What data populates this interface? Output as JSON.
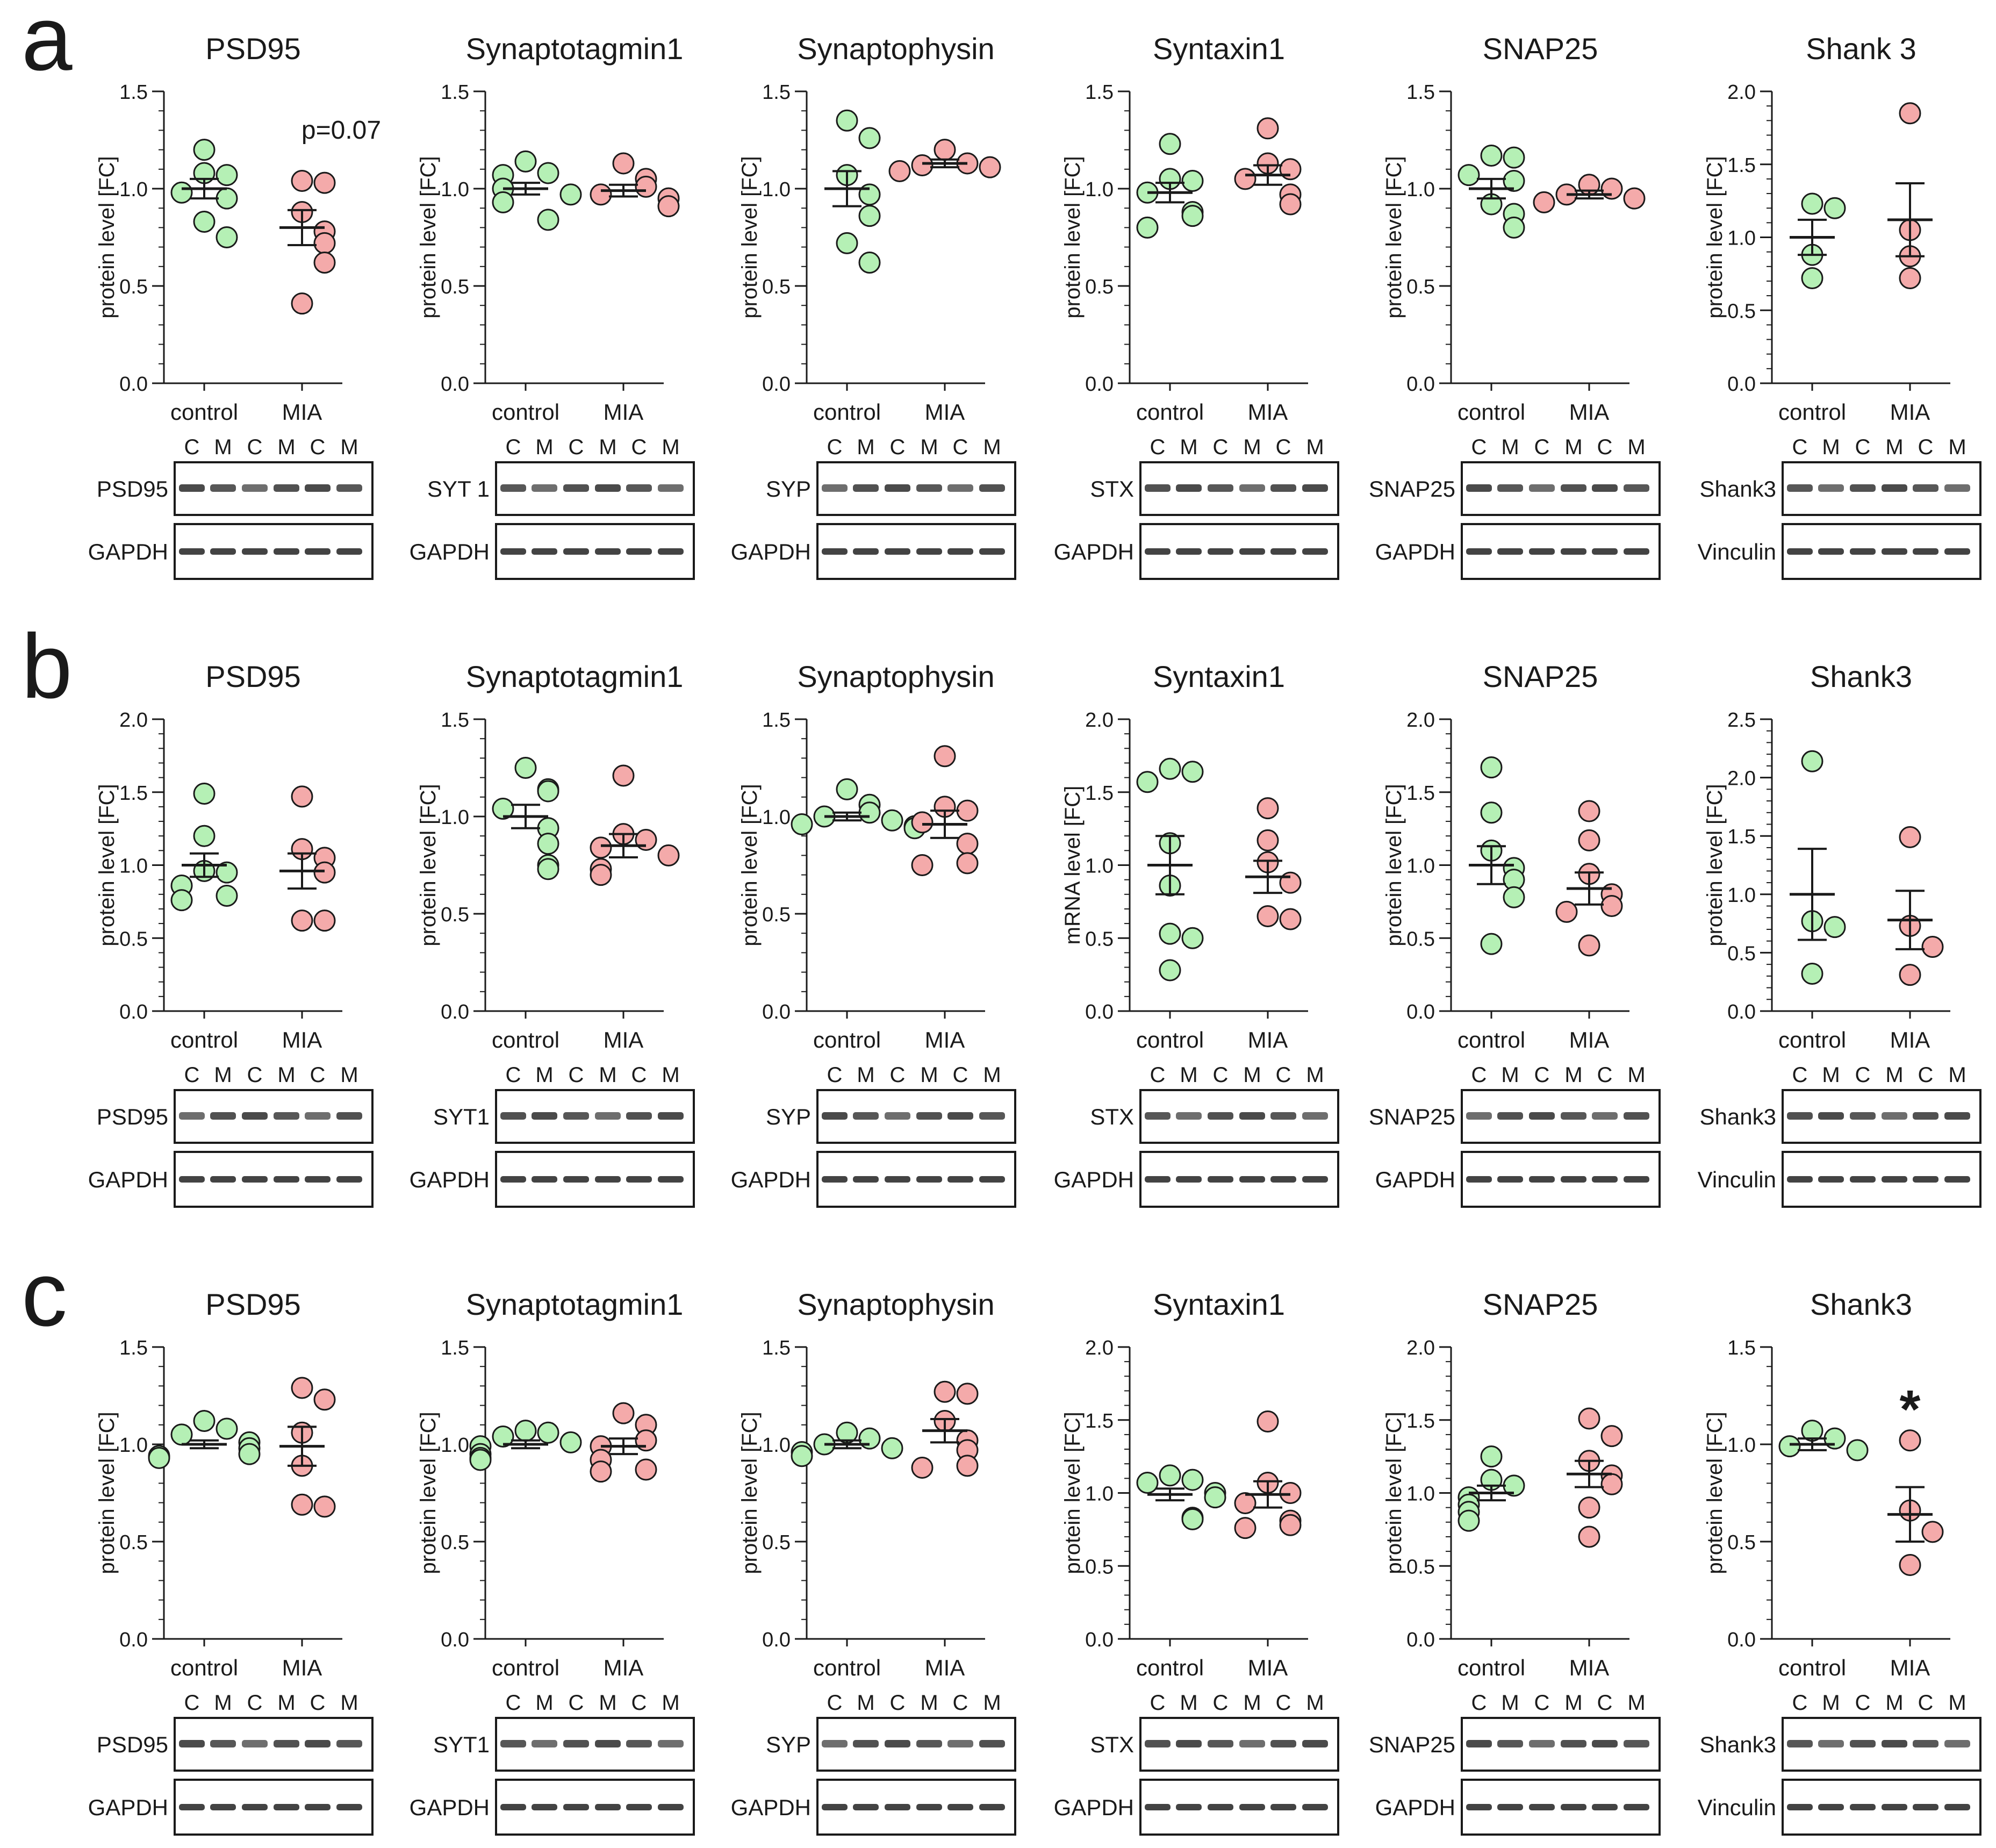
{
  "figure": {
    "colors": {
      "control": "#b5f0b5",
      "mia": "#f4aaaa",
      "stroke": "#1a1a1a"
    },
    "strip_labels": [
      "C",
      "M",
      "C",
      "M",
      "C",
      "M"
    ]
  },
  "chart_data": [
    {
      "panel": "a",
      "panel_label": "a",
      "title": "PSD95",
      "type": "scatter",
      "ylabel": "protein level [FC]",
      "ylim": [
        0,
        1.5
      ],
      "yticks": [
        "0.0",
        "0.5",
        "1.0",
        "1.5"
      ],
      "categories": [
        "control",
        "MIA"
      ],
      "series": [
        {
          "name": "control",
          "values": [
            1.2,
            1.08,
            1.07,
            0.98,
            0.95,
            0.83,
            0.75
          ],
          "mean": 1.0,
          "sem": 0.05
        },
        {
          "name": "MIA",
          "values": [
            1.04,
            1.03,
            0.88,
            0.78,
            0.72,
            0.62,
            0.41
          ],
          "mean": 0.8,
          "sem": 0.09
        }
      ],
      "annotation": "p=0.07",
      "blot": {
        "target": "PSD95",
        "loading": "GAPDH"
      }
    },
    {
      "panel": "a",
      "panel_label": "",
      "title": "Synaptotagmin1",
      "type": "scatter",
      "ylabel": "protein level [FC]",
      "ylim": [
        0,
        1.5
      ],
      "yticks": [
        "0.0",
        "0.5",
        "1.0",
        "1.5"
      ],
      "categories": [
        "control",
        "MIA"
      ],
      "series": [
        {
          "name": "control",
          "values": [
            1.14,
            1.08,
            1.07,
            1.0,
            0.97,
            0.93,
            0.84
          ],
          "mean": 1.0,
          "sem": 0.03
        },
        {
          "name": "MIA",
          "values": [
            1.13,
            1.05,
            1.01,
            0.97,
            0.95,
            0.91
          ],
          "mean": 0.99,
          "sem": 0.03
        }
      ],
      "annotation": "",
      "blot": {
        "target": "SYT 1",
        "loading": "GAPDH"
      }
    },
    {
      "panel": "a",
      "panel_label": "",
      "title": "Synaptophysin",
      "type": "scatter",
      "ylabel": "protein level [FC]",
      "ylim": [
        0,
        1.5
      ],
      "yticks": [
        "0.0",
        "0.5",
        "1.0",
        "1.5"
      ],
      "categories": [
        "control",
        "MIA"
      ],
      "series": [
        {
          "name": "control",
          "values": [
            1.35,
            1.26,
            1.07,
            0.97,
            0.86,
            0.72,
            0.62
          ],
          "mean": 1.0,
          "sem": 0.09
        },
        {
          "name": "MIA",
          "values": [
            1.2,
            1.13,
            1.12,
            1.11,
            1.09
          ],
          "mean": 1.13,
          "sem": 0.02
        }
      ],
      "annotation": "",
      "blot": {
        "target": "SYP",
        "loading": "GAPDH"
      }
    },
    {
      "panel": "a",
      "panel_label": "",
      "title": "Syntaxin1",
      "type": "scatter",
      "ylabel": "protein level [FC]",
      "ylim": [
        0,
        1.5
      ],
      "yticks": [
        "0.0",
        "0.5",
        "1.0",
        "1.5"
      ],
      "categories": [
        "control",
        "MIA"
      ],
      "series": [
        {
          "name": "control",
          "values": [
            1.23,
            1.05,
            1.04,
            0.98,
            0.88,
            0.86,
            0.8
          ],
          "mean": 0.98,
          "sem": 0.05
        },
        {
          "name": "MIA",
          "values": [
            1.31,
            1.13,
            1.1,
            1.05,
            0.97,
            0.92
          ],
          "mean": 1.07,
          "sem": 0.05
        }
      ],
      "annotation": "",
      "blot": {
        "target": "STX",
        "loading": "GAPDH"
      }
    },
    {
      "panel": "a",
      "panel_label": "",
      "title": "SNAP25",
      "type": "scatter",
      "ylabel": "protein level [FC]",
      "ylim": [
        0,
        1.5
      ],
      "yticks": [
        "0.0",
        "0.5",
        "1.0",
        "1.5"
      ],
      "categories": [
        "control",
        "MIA"
      ],
      "series": [
        {
          "name": "control",
          "values": [
            1.17,
            1.16,
            1.07,
            1.04,
            0.92,
            0.87,
            0.8
          ],
          "mean": 1.0,
          "sem": 0.05
        },
        {
          "name": "MIA",
          "values": [
            1.02,
            1.0,
            0.97,
            0.95,
            0.93
          ],
          "mean": 0.97,
          "sem": 0.02
        }
      ],
      "annotation": "",
      "blot": {
        "target": "SNAP25",
        "loading": "GAPDH"
      }
    },
    {
      "panel": "a",
      "panel_label": "",
      "title": "Shank 3",
      "type": "scatter",
      "ylabel": "protein level [FC]",
      "ylim": [
        0,
        2.0
      ],
      "yticks": [
        "0.0",
        "0.5",
        "1.0",
        "1.5",
        "2.0"
      ],
      "categories": [
        "control",
        "MIA"
      ],
      "series": [
        {
          "name": "control",
          "values": [
            1.23,
            1.2,
            0.88,
            0.72
          ],
          "mean": 1.0,
          "sem": 0.12
        },
        {
          "name": "MIA",
          "values": [
            1.85,
            1.05,
            0.87,
            0.72
          ],
          "mean": 1.12,
          "sem": 0.25
        }
      ],
      "annotation": "",
      "blot": {
        "target": "Shank3",
        "loading": "Vinculin"
      }
    },
    {
      "panel": "b",
      "panel_label": "b",
      "title": "PSD95",
      "type": "scatter",
      "ylabel": "protein level [FC]",
      "ylim": [
        0,
        2.0
      ],
      "yticks": [
        "0.0",
        "0.5",
        "1.0",
        "1.5",
        "2.0"
      ],
      "categories": [
        "control",
        "MIA"
      ],
      "series": [
        {
          "name": "control",
          "values": [
            1.49,
            1.2,
            0.96,
            0.95,
            0.86,
            0.79,
            0.76
          ],
          "mean": 1.0,
          "sem": 0.08
        },
        {
          "name": "MIA",
          "values": [
            1.47,
            1.11,
            1.05,
            0.95,
            0.62,
            0.62
          ],
          "mean": 0.96,
          "sem": 0.12
        }
      ],
      "annotation": "",
      "blot": {
        "target": "PSD95",
        "loading": "GAPDH"
      }
    },
    {
      "panel": "b",
      "panel_label": "",
      "title": "Synaptotagmin1",
      "type": "scatter",
      "ylabel": "protein level [FC]",
      "ylim": [
        0,
        1.5
      ],
      "yticks": [
        "0.0",
        "0.5",
        "1.0",
        "1.5"
      ],
      "categories": [
        "control",
        "MIA"
      ],
      "series": [
        {
          "name": "control",
          "values": [
            1.25,
            1.14,
            1.13,
            1.04,
            0.94,
            0.86,
            0.75,
            0.73
          ],
          "mean": 1.0,
          "sem": 0.06
        },
        {
          "name": "MIA",
          "values": [
            1.21,
            0.91,
            0.88,
            0.84,
            0.8,
            0.73,
            0.7
          ],
          "mean": 0.85,
          "sem": 0.06
        }
      ],
      "annotation": "",
      "blot": {
        "target": "SYT1",
        "loading": "GAPDH"
      }
    },
    {
      "panel": "b",
      "panel_label": "",
      "title": "Synaptophysin",
      "type": "scatter",
      "ylabel": "protein level [FC]",
      "ylim": [
        0,
        1.5
      ],
      "yticks": [
        "0.0",
        "0.5",
        "1.0",
        "1.5"
      ],
      "categories": [
        "control",
        "MIA"
      ],
      "series": [
        {
          "name": "control",
          "values": [
            1.14,
            1.06,
            1.02,
            1.0,
            0.98,
            0.96,
            0.95,
            0.94
          ],
          "mean": 1.0,
          "sem": 0.02
        },
        {
          "name": "MIA",
          "values": [
            1.31,
            1.05,
            1.03,
            0.97,
            0.86,
            0.76,
            0.75
          ],
          "mean": 0.96,
          "sem": 0.07
        }
      ],
      "annotation": "",
      "blot": {
        "target": "SYP",
        "loading": "GAPDH"
      }
    },
    {
      "panel": "b",
      "panel_label": "",
      "title": "Syntaxin1",
      "type": "scatter",
      "ylabel": "mRNA level [FC]",
      "ylim": [
        0,
        2.0
      ],
      "yticks": [
        "0.0",
        "0.5",
        "1.0",
        "1.5",
        "2.0"
      ],
      "categories": [
        "control",
        "MIA"
      ],
      "series": [
        {
          "name": "control",
          "values": [
            1.66,
            1.64,
            1.57,
            1.15,
            0.86,
            0.53,
            0.5,
            0.28
          ],
          "mean": 1.0,
          "sem": 0.2
        },
        {
          "name": "MIA",
          "values": [
            1.39,
            1.17,
            1.02,
            0.88,
            0.65,
            0.63
          ],
          "mean": 0.92,
          "sem": 0.11
        }
      ],
      "annotation": "",
      "blot": {
        "target": "STX",
        "loading": "GAPDH"
      }
    },
    {
      "panel": "b",
      "panel_label": "",
      "title": "SNAP25",
      "type": "scatter",
      "ylabel": "protein level [FC]",
      "ylim": [
        0,
        2.0
      ],
      "yticks": [
        "0.0",
        "0.5",
        "1.0",
        "1.5",
        "2.0"
      ],
      "categories": [
        "control",
        "MIA"
      ],
      "series": [
        {
          "name": "control",
          "values": [
            1.67,
            1.36,
            1.1,
            0.98,
            0.9,
            0.78,
            0.46
          ],
          "mean": 1.0,
          "sem": 0.13
        },
        {
          "name": "MIA",
          "values": [
            1.37,
            1.17,
            0.94,
            0.8,
            0.72,
            0.68,
            0.45
          ],
          "mean": 0.84,
          "sem": 0.11
        }
      ],
      "annotation": "",
      "blot": {
        "target": "SNAP25",
        "loading": "GAPDH"
      }
    },
    {
      "panel": "b",
      "panel_label": "",
      "title": "Shank3",
      "type": "scatter",
      "ylabel": "protein level [FC]",
      "ylim": [
        0,
        2.5
      ],
      "yticks": [
        "0.0",
        "0.5",
        "1.0",
        "1.5",
        "2.0",
        "2.5"
      ],
      "categories": [
        "control",
        "MIA"
      ],
      "series": [
        {
          "name": "control",
          "values": [
            2.14,
            0.77,
            0.72,
            0.32
          ],
          "mean": 1.0,
          "sem": 0.39
        },
        {
          "name": "MIA",
          "values": [
            1.49,
            0.73,
            0.55,
            0.31
          ],
          "mean": 0.78,
          "sem": 0.25
        }
      ],
      "annotation": "",
      "blot": {
        "target": "Shank3",
        "loading": "Vinculin"
      }
    },
    {
      "panel": "c",
      "panel_label": "c",
      "title": "PSD95",
      "type": "scatter",
      "ylabel": "protein level [FC]",
      "ylim": [
        0,
        1.5
      ],
      "yticks": [
        "0.0",
        "0.5",
        "1.0",
        "1.5"
      ],
      "categories": [
        "control",
        "MIA"
      ],
      "series": [
        {
          "name": "control",
          "values": [
            1.12,
            1.08,
            1.05,
            1.01,
            0.98,
            0.95,
            0.94,
            0.93
          ],
          "mean": 1.0,
          "sem": 0.02
        },
        {
          "name": "MIA",
          "values": [
            1.29,
            1.23,
            1.06,
            0.89,
            0.69,
            0.68
          ],
          "mean": 0.99,
          "sem": 0.1
        }
      ],
      "annotation": "",
      "blot": {
        "target": "PSD95",
        "loading": "GAPDH"
      }
    },
    {
      "panel": "c",
      "panel_label": "",
      "title": "Synaptotagmin1",
      "type": "scatter",
      "ylabel": "protein level [FC]",
      "ylim": [
        0,
        1.5
      ],
      "yticks": [
        "0.0",
        "0.5",
        "1.0",
        "1.5"
      ],
      "categories": [
        "control",
        "MIA"
      ],
      "series": [
        {
          "name": "control",
          "values": [
            1.07,
            1.06,
            1.04,
            1.01,
            0.99,
            0.95,
            0.93,
            0.92
          ],
          "mean": 1.0,
          "sem": 0.02
        },
        {
          "name": "MIA",
          "values": [
            1.16,
            1.1,
            1.02,
            0.99,
            0.92,
            0.87,
            0.86
          ],
          "mean": 0.99,
          "sem": 0.04
        }
      ],
      "annotation": "",
      "blot": {
        "target": "SYT1",
        "loading": "GAPDH"
      }
    },
    {
      "panel": "c",
      "panel_label": "",
      "title": "Synaptophysin",
      "type": "scatter",
      "ylabel": "protein level [FC]",
      "ylim": [
        0,
        1.5
      ],
      "yticks": [
        "0.0",
        "0.5",
        "1.0",
        "1.5"
      ],
      "categories": [
        "control",
        "MIA"
      ],
      "series": [
        {
          "name": "control",
          "values": [
            1.06,
            1.03,
            1.0,
            0.98,
            0.96,
            0.94
          ],
          "mean": 1.0,
          "sem": 0.02
        },
        {
          "name": "MIA",
          "values": [
            1.27,
            1.26,
            1.12,
            1.02,
            0.97,
            0.89,
            0.88
          ],
          "mean": 1.07,
          "sem": 0.06
        }
      ],
      "annotation": "",
      "blot": {
        "target": "SYP",
        "loading": "GAPDH"
      }
    },
    {
      "panel": "c",
      "panel_label": "",
      "title": "Syntaxin1",
      "type": "scatter",
      "ylabel": "protein level [FC]",
      "ylim": [
        0,
        2.0
      ],
      "yticks": [
        "0.0",
        "0.5",
        "1.0",
        "1.5",
        "2.0"
      ],
      "categories": [
        "control",
        "MIA"
      ],
      "series": [
        {
          "name": "control",
          "values": [
            1.12,
            1.09,
            1.07,
            1.0,
            0.97,
            0.83,
            0.82
          ],
          "mean": 0.99,
          "sem": 0.04
        },
        {
          "name": "MIA",
          "values": [
            1.49,
            1.07,
            1.0,
            0.93,
            0.81,
            0.78,
            0.76
          ],
          "mean": 0.99,
          "sem": 0.09
        }
      ],
      "annotation": "",
      "blot": {
        "target": "STX",
        "loading": "GAPDH"
      }
    },
    {
      "panel": "c",
      "panel_label": "",
      "title": "SNAP25",
      "type": "scatter",
      "ylabel": "protein level [FC]",
      "ylim": [
        0,
        2.0
      ],
      "yticks": [
        "0.0",
        "0.5",
        "1.0",
        "1.5",
        "2.0"
      ],
      "categories": [
        "control",
        "MIA"
      ],
      "series": [
        {
          "name": "control",
          "values": [
            1.25,
            1.09,
            1.05,
            0.97,
            0.92,
            0.87,
            0.81
          ],
          "mean": 1.0,
          "sem": 0.05
        },
        {
          "name": "MIA",
          "values": [
            1.51,
            1.39,
            1.22,
            1.12,
            1.06,
            0.9,
            0.7
          ],
          "mean": 1.13,
          "sem": 0.09
        }
      ],
      "annotation": "",
      "blot": {
        "target": "SNAP25",
        "loading": "GAPDH"
      }
    },
    {
      "panel": "c",
      "panel_label": "",
      "title": "Shank3",
      "type": "scatter",
      "ylabel": "protein level [FC]",
      "ylim": [
        0,
        1.5
      ],
      "yticks": [
        "0.0",
        "0.5",
        "1.0",
        "1.5"
      ],
      "categories": [
        "control",
        "MIA"
      ],
      "series": [
        {
          "name": "control",
          "values": [
            1.07,
            1.03,
            0.99,
            0.97
          ],
          "mean": 1.0,
          "sem": 0.03
        },
        {
          "name": "MIA",
          "values": [
            1.02,
            0.66,
            0.55,
            0.38
          ],
          "mean": 0.64,
          "sem": 0.14
        }
      ],
      "annotation": "*",
      "blot": {
        "target": "Shank3",
        "loading": "Vinculin"
      }
    }
  ]
}
